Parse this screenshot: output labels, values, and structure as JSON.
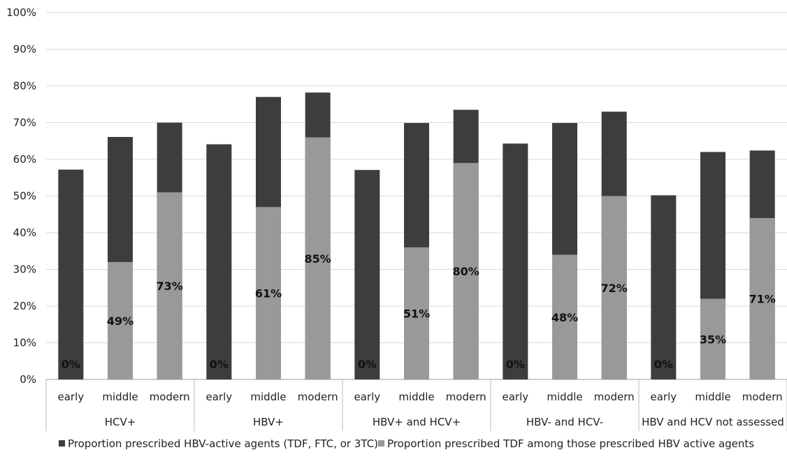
{
  "chart_data": {
    "type": "bar",
    "stacked": true,
    "y_axis": {
      "ticks": [
        "0%",
        "10%",
        "20%",
        "30%",
        "40%",
        "50%",
        "60%",
        "70%",
        "80%",
        "90%",
        "100%"
      ],
      "ylim": [
        0,
        100
      ],
      "unit": "%"
    },
    "grid": true,
    "categories": [
      "early",
      "middle",
      "modern",
      "early",
      "middle",
      "modern",
      "early",
      "middle",
      "modern",
      "early",
      "middle",
      "modern",
      "early",
      "middle",
      "modern"
    ],
    "groups": [
      {
        "label": "HCV+",
        "span": 3
      },
      {
        "label": "HBV+",
        "span": 3
      },
      {
        "label": "HBV+ and HCV+",
        "span": 3
      },
      {
        "label": "HBV- and HCV-",
        "span": 3
      },
      {
        "label": "HBV and HCV not assessed",
        "span": 3
      }
    ],
    "series": [
      {
        "name": "Proportion prescribed HBV-active agents (TDF, FTC, or 3TC)",
        "color": "#3d3d3d",
        "totals": [
          57.2,
          66.1,
          70.0,
          64.1,
          77.0,
          78.2,
          57.1,
          69.9,
          73.5,
          64.3,
          69.9,
          73.0,
          50.2,
          62.0,
          62.4
        ]
      },
      {
        "name": "Proportion prescribed TDF among those prescribed HBV active agents",
        "color": "#999999",
        "values": [
          0,
          32.0,
          51.0,
          0,
          47.0,
          66.0,
          0,
          36.0,
          59.0,
          0,
          34.0,
          50.0,
          0,
          22.0,
          44.0
        ],
        "data_labels": [
          "0%",
          "49%",
          "73%",
          "0%",
          "61%",
          "85%",
          "0%",
          "51%",
          "80%",
          "0%",
          "48%",
          "72%",
          "0%",
          "35%",
          "71%"
        ]
      }
    ],
    "legend_position": "bottom"
  }
}
